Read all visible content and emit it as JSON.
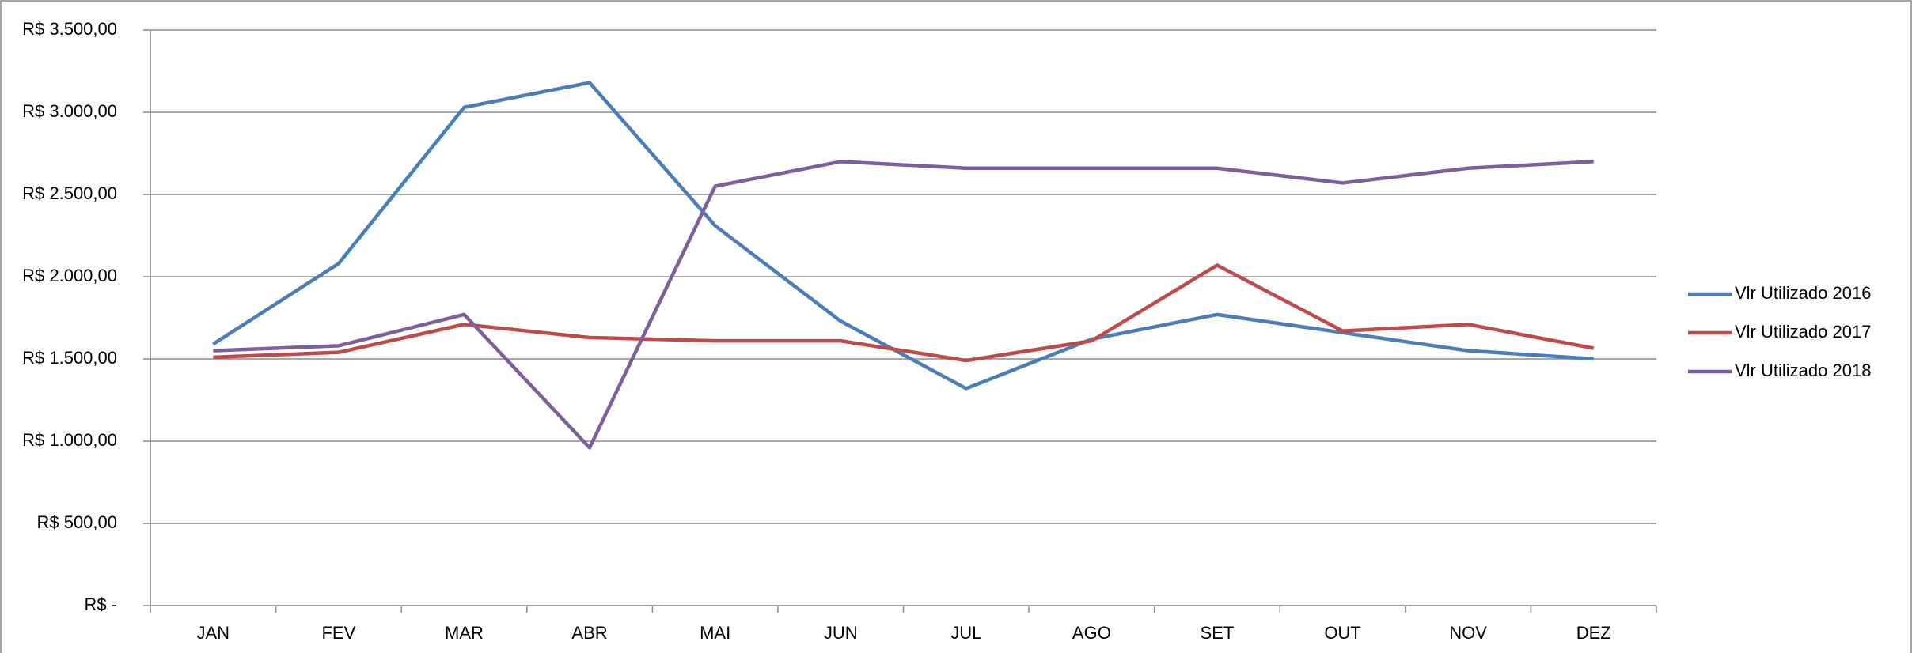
{
  "chart_data": {
    "type": "line",
    "categories": [
      "JAN",
      "FEV",
      "MAR",
      "ABR",
      "MAI",
      "JUN",
      "JUL",
      "AGO",
      "SET",
      "OUT",
      "NOV",
      "DEZ"
    ],
    "series": [
      {
        "name": "Vlr Utilizado 2016",
        "color": "#4a7ebb",
        "values": [
          1590,
          2080,
          3030,
          3180,
          2310,
          1730,
          1320,
          1620,
          1770,
          1660,
          1550,
          1500
        ]
      },
      {
        "name": "Vlr Utilizado 2017",
        "color": "#be4b48",
        "values": [
          1510,
          1540,
          1710,
          1630,
          1610,
          1610,
          1490,
          1610,
          2070,
          1670,
          1710,
          1565
        ]
      },
      {
        "name": "Vlr Utilizado 2018",
        "color": "#7d5fa0",
        "values": [
          1550,
          1580,
          1770,
          960,
          2550,
          2700,
          2660,
          2660,
          2660,
          2570,
          2660,
          2700
        ]
      }
    ],
    "ylim": [
      0,
      3500
    ],
    "yticks": [
      {
        "value": 0,
        "label": "R$ -"
      },
      {
        "value": 500,
        "label": "R$ 500,00"
      },
      {
        "value": 1000,
        "label": "R$ 1.000,00"
      },
      {
        "value": 1500,
        "label": "R$ 1.500,00"
      },
      {
        "value": 2000,
        "label": "R$ 2.000,00"
      },
      {
        "value": 2500,
        "label": "R$ 2.500,00"
      },
      {
        "value": 3000,
        "label": "R$ 3.000,00"
      },
      {
        "value": 3500,
        "label": "R$ 3.500,00"
      }
    ],
    "grid": true,
    "legend": "right"
  }
}
